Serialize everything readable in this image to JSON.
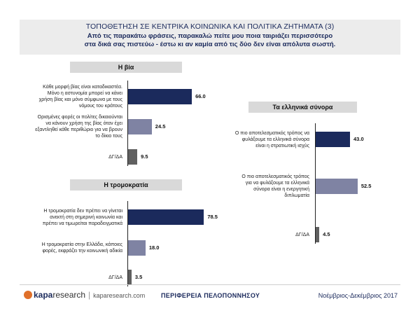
{
  "header": {
    "title": "ΤΟΠΟΘΕΤΗΣΗ ΣΕ ΚΕΝΤΡΙΚΑ ΚΟΙΝΩΝΙΚΑ ΚΑΙ ΠΟΛΙΤΙΚΑ ΖΗΤΗΜΑΤΑ (3)",
    "subtitle_line1": "Από τις παρακάτω φράσεις, παρακαλώ πείτε μου ποια ταιριάζει περισσότερο",
    "subtitle_line2": "στα δικά σας πιστεύω - έστω κι αν καμία από τις δύο δεν είναι απόλυτα σωστή."
  },
  "colors": {
    "primary_bar": "#1b2a5c",
    "secondary_bar": "#7f83a3",
    "dk_bar": "#606060"
  },
  "chart_data": [
    {
      "type": "bar",
      "orientation": "horizontal",
      "title": "Η βία",
      "categories": [
        [
          "Κάθε μορφή βίας είναι καταδικαστέα.",
          "Μόνο η αστυνομία μπορεί να κάνει",
          "χρήση βίας και μόνο σύμφωνα με τους",
          "νόμους του κράτους"
        ],
        [
          "Ορισμένες φορές οι πολίτες δικαιούνται",
          "να κάνουν χρήση της βίας όταν έχει",
          "εξαντληθεί κάθε περιθώριο για να βρουν",
          "το δίκιο τους"
        ],
        [
          "ΔΓ/ΔΑ"
        ]
      ],
      "values": [
        66.0,
        24.5,
        9.5
      ],
      "value_labels": [
        "66.0",
        "24.5",
        "9.5"
      ]
    },
    {
      "type": "bar",
      "orientation": "horizontal",
      "title": "Η τρομοκρατία",
      "categories": [
        [
          "Η τρομοκρατία δεν πρέπει να γίνεται",
          "ανεκτή στη σημερινή κοινωνία και",
          "πρέπει να τιμωρείται παραδειγματικά"
        ],
        [
          "Η τρομοκρατία στην Ελλάδα, κάποιες",
          "φορές, εκφράζει την κοινωνική αδικία"
        ],
        [
          "ΔΓ/ΔΑ"
        ]
      ],
      "values": [
        78.5,
        18.0,
        3.5
      ],
      "value_labels": [
        "78.5",
        "18.0",
        "3.5"
      ]
    },
    {
      "type": "bar",
      "orientation": "horizontal",
      "title": "Τα ελληνικά σύνορα",
      "categories": [
        [
          "Ο πιο αποτελεσματικός τρόπος να",
          "φυλάξουμε τα ελληνικά σύνορα",
          "είναι η στρατιωτική ισχύς"
        ],
        [
          "Ο πιο αποτελεσματικός τρόπος",
          "για να φυλάξουμε τα ελληνικά",
          "σύνορα είναι η ενεργητική",
          "διπλωματία"
        ],
        [
          "ΔΓ/ΔΑ"
        ]
      ],
      "values": [
        43.0,
        52.5,
        4.5
      ],
      "value_labels": [
        "43.0",
        "52.5",
        "4.5"
      ]
    }
  ],
  "footer": {
    "logo_kapa": "kapa",
    "logo_research": "research",
    "logo_separator": "|",
    "logo_site": "kaparesearch.com",
    "region": "ΠΕΡΙΦΕΡΕΙΑ ΠΕΛΟΠΟΝΝΗΣΟΥ",
    "date": "Νοέμβριος-Δεκέμβριος 2017"
  }
}
